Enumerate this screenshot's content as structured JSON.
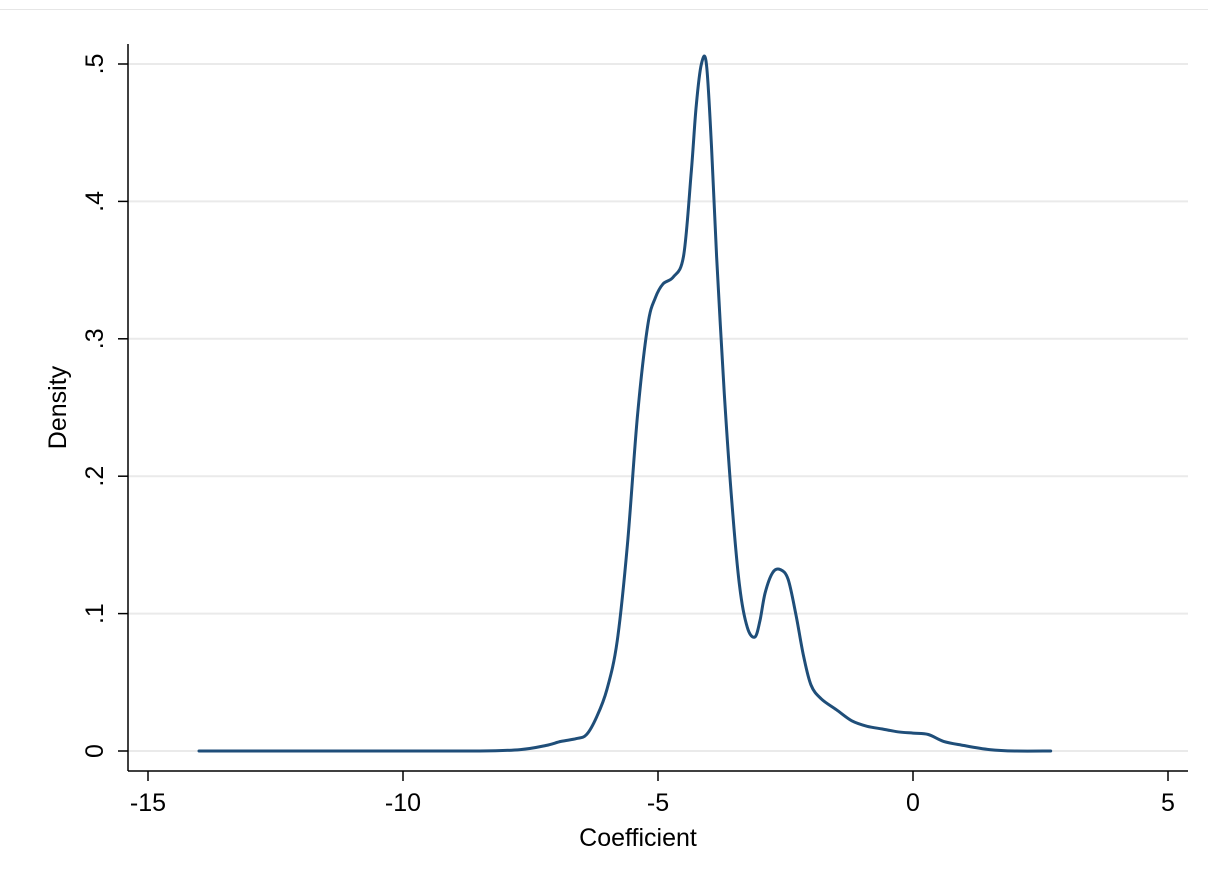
{
  "chart_data": {
    "type": "line",
    "xlabel": "Coefficient",
    "ylabel": "Density",
    "xlim": [
      -15,
      5
    ],
    "ylim": [
      0,
      0.5
    ],
    "x_ticks": [
      {
        "value": -15,
        "label": "-15"
      },
      {
        "value": -10,
        "label": "-10"
      },
      {
        "value": -5,
        "label": "-5"
      },
      {
        "value": 0,
        "label": "0"
      },
      {
        "value": 5,
        "label": "5"
      }
    ],
    "y_ticks": [
      {
        "value": 0,
        "label": "0"
      },
      {
        "value": 0.1,
        "label": ".1"
      },
      {
        "value": 0.2,
        "label": ".2"
      },
      {
        "value": 0.3,
        "label": ".3"
      },
      {
        "value": 0.4,
        "label": ".4"
      },
      {
        "value": 0.5,
        "label": ".5"
      }
    ],
    "grid": "horizontal",
    "line_color": "#1f4e79",
    "series": [
      {
        "x": [
          -14.0,
          -12.0,
          -10.0,
          -8.5,
          -7.7,
          -7.2,
          -6.9,
          -6.6,
          -6.4,
          -6.2,
          -6.0,
          -5.8,
          -5.6,
          -5.4,
          -5.2,
          -5.05,
          -4.9,
          -4.7,
          -4.5,
          -4.35,
          -4.25,
          -4.15,
          -4.05,
          -3.95,
          -3.85,
          -3.7,
          -3.55,
          -3.4,
          -3.25,
          -3.1,
          -3.0,
          -2.9,
          -2.75,
          -2.6,
          -2.45,
          -2.3,
          -2.15,
          -2.0,
          -1.8,
          -1.5,
          -1.2,
          -0.9,
          -0.6,
          -0.3,
          0.0,
          0.3,
          0.6,
          1.0,
          1.5,
          2.0,
          2.7
        ],
        "y": [
          0.0,
          0.0,
          0.0,
          0.0,
          0.001,
          0.004,
          0.007,
          0.009,
          0.012,
          0.025,
          0.045,
          0.08,
          0.15,
          0.245,
          0.31,
          0.33,
          0.34,
          0.345,
          0.36,
          0.42,
          0.47,
          0.5,
          0.5,
          0.44,
          0.36,
          0.26,
          0.18,
          0.12,
          0.09,
          0.083,
          0.095,
          0.115,
          0.13,
          0.132,
          0.125,
          0.1,
          0.07,
          0.048,
          0.038,
          0.03,
          0.022,
          0.018,
          0.016,
          0.014,
          0.013,
          0.012,
          0.007,
          0.004,
          0.001,
          0.0,
          0.0
        ]
      }
    ]
  }
}
